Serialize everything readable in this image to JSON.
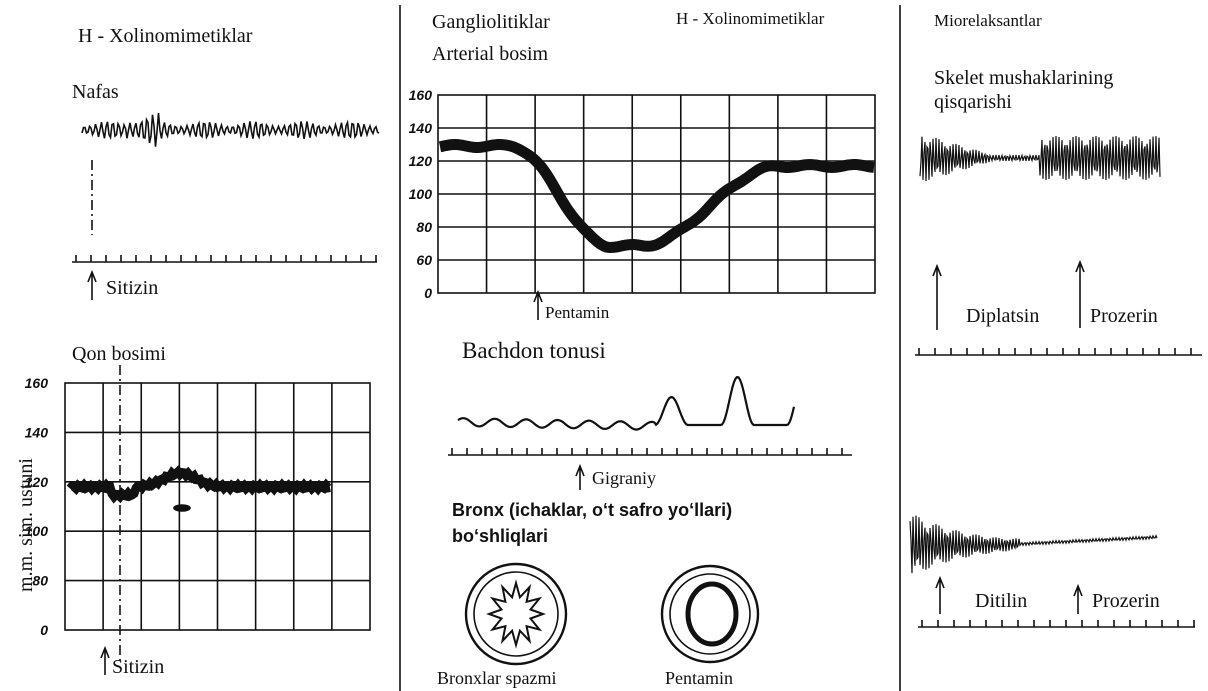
{
  "left": {
    "title": "H - Xolinomimetiklar",
    "breathing": {
      "label": "Nafas",
      "marker": "Sitizin"
    },
    "blood_pressure": {
      "label": "Qon bosimi",
      "axis_label": "m.m. sim. ustuni",
      "tick_labels": [
        160,
        140,
        120,
        100,
        80,
        0
      ],
      "marker": "Sitizin"
    }
  },
  "middle": {
    "title": "Gangliolitiklar",
    "subtitle": "Arterial bosim",
    "header_right": "H - Xolinomimetiklar",
    "pressure": {
      "tick_labels": [
        160,
        140,
        120,
        100,
        80,
        60,
        0
      ],
      "marker": "Pentamin"
    },
    "uterus": {
      "label": "Bachdon tonusi",
      "marker": "Gigraniy"
    },
    "bronchi": {
      "label_lines": [
        "Bronx (ichaklar, o‘t safro yo‘llari)",
        "bo‘shliqlari"
      ],
      "left_caption": "Bronxlar spazmi",
      "right_caption": "Pentamin"
    }
  },
  "right": {
    "title": "Miorelaksantlar",
    "skeletal": {
      "label_lines": [
        "Skelet mushaklarining",
        "qisqarishi"
      ],
      "markers": [
        "Diplatsin",
        "Prozerin"
      ]
    },
    "second": {
      "markers": [
        "Ditilin",
        "Prozerin"
      ]
    }
  }
}
